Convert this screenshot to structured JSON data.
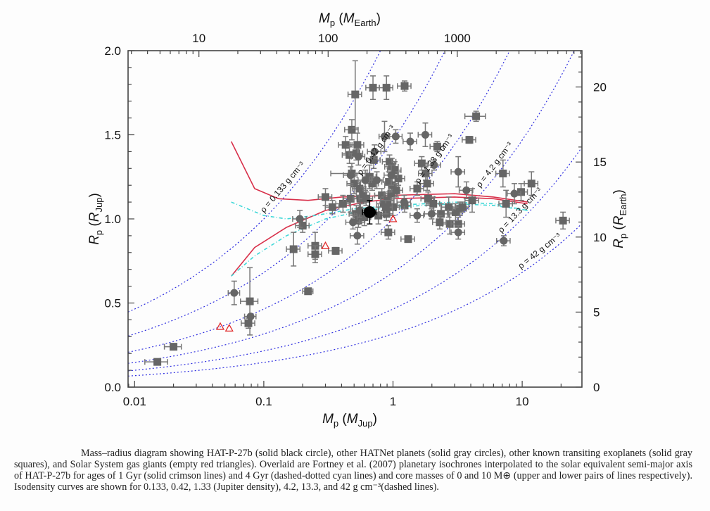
{
  "chart_data": {
    "type": "scatter",
    "title": "",
    "xlabel": "M_p (M_Jup)",
    "xlabel_main": "M",
    "xlabel_sub": "p",
    "xlabel_unit_main": "M",
    "xlabel_unit_sub": "Jup",
    "x2label_main": "M",
    "x2label_sub": "p",
    "x2label_unit_main": "M",
    "x2label_unit_sub": "Earth",
    "ylabel_main": "R",
    "ylabel_sub": "p",
    "ylabel_unit_main": "R",
    "ylabel_unit_sub": "Jup",
    "y2label_main": "R",
    "y2label_sub": "p",
    "y2label_unit_main": "R",
    "y2label_unit_sub": "Earth",
    "xscale": "log",
    "xlim": [
      0.0089,
      29
    ],
    "ylim": [
      0.0,
      2.0
    ],
    "x_ticks": [
      {
        "v": 0.01,
        "label": "0.01"
      },
      {
        "v": 0.1,
        "label": "0.1"
      },
      {
        "v": 1,
        "label": "1"
      },
      {
        "v": 10,
        "label": "10"
      }
    ],
    "y_ticks": [
      {
        "v": 0.0,
        "label": "0.0"
      },
      {
        "v": 0.5,
        "label": "0.5"
      },
      {
        "v": 1.0,
        "label": "1.0"
      },
      {
        "v": 1.5,
        "label": "1.5"
      },
      {
        "v": 2.0,
        "label": "2.0"
      }
    ],
    "x2_ticks_earth": [
      {
        "v": 10,
        "label": "10"
      },
      {
        "v": 100,
        "label": "100"
      },
      {
        "v": 1000,
        "label": "1000"
      }
    ],
    "y2_ticks_earth": [
      {
        "v": 0,
        "label": "0"
      },
      {
        "v": 5,
        "label": "5"
      },
      {
        "v": 10,
        "label": "10"
      },
      {
        "v": 15,
        "label": "15"
      },
      {
        "v": 20,
        "label": "20"
      }
    ],
    "earth_per_jup_mass": 317.8,
    "earth_per_jup_radius": 11.21,
    "grid": false,
    "series": [
      {
        "name": "HAT-P-27b",
        "marker": "big-black-circle",
        "color": "#000000",
        "points": [
          {
            "m": 0.66,
            "r": 1.04,
            "dr": 0.07
          }
        ]
      },
      {
        "name": "Other HATNet planets",
        "marker": "gray-circle",
        "color": "#666666",
        "points": [
          {
            "m": 0.059,
            "r": 0.56,
            "dr": 0.07,
            "dm": 0.006
          },
          {
            "m": 0.079,
            "r": 0.42,
            "dr": 0.0,
            "dm": 0.008
          },
          {
            "m": 0.19,
            "r": 1.0,
            "dr": 0.05
          },
          {
            "m": 0.53,
            "r": 0.9,
            "dr": 0.05
          },
          {
            "m": 0.49,
            "r": 0.98,
            "dr": 0.04
          },
          {
            "m": 0.55,
            "r": 1.05,
            "dr": 0.04
          },
          {
            "m": 0.61,
            "r": 1.23,
            "dr": 0.06
          },
          {
            "m": 0.47,
            "r": 1.26,
            "dr": 0.05
          },
          {
            "m": 0.75,
            "r": 1.23,
            "dr": 0.05
          },
          {
            "m": 0.54,
            "r": 1.37,
            "dr": 0.05
          },
          {
            "m": 0.72,
            "r": 1.4,
            "dr": 0.04
          },
          {
            "m": 0.86,
            "r": 1.49,
            "dr": 0.09,
            "dm": 0.08
          },
          {
            "m": 0.97,
            "r": 1.26,
            "dr": 0.06
          },
          {
            "m": 1.05,
            "r": 1.49,
            "dr": 0.04
          },
          {
            "m": 1.36,
            "r": 1.46,
            "dr": 0.05
          },
          {
            "m": 1.78,
            "r": 1.5,
            "dr": 0.07
          },
          {
            "m": 2.08,
            "r": 1.32,
            "dr": 0.03
          },
          {
            "m": 1.22,
            "r": 1.1,
            "dr": 0.04
          },
          {
            "m": 1.54,
            "r": 1.02,
            "dr": 0.04
          },
          {
            "m": 1.99,
            "r": 1.03,
            "dr": 0.03
          },
          {
            "m": 3.2,
            "r": 1.28,
            "dr": 0.09
          },
          {
            "m": 3.2,
            "r": 0.92,
            "dr": 0.04
          },
          {
            "m": 7.2,
            "r": 0.87,
            "dr": 0.03
          },
          {
            "m": 8.7,
            "r": 1.15,
            "dr": 0.06
          },
          {
            "m": 3.7,
            "r": 1.17,
            "dr": 0.05
          }
        ]
      },
      {
        "name": "Other transiting exoplanets",
        "marker": "gray-square",
        "color": "#666666",
        "points": [
          {
            "m": 0.015,
            "r": 0.15,
            "dr": 0.0,
            "dm": 0.003
          },
          {
            "m": 0.02,
            "r": 0.24,
            "dr": 0.0,
            "dm": 0.003
          },
          {
            "m": 0.078,
            "r": 0.51,
            "dr": 0.2,
            "dm": 0.012
          },
          {
            "m": 0.076,
            "r": 0.38,
            "dr": 0.03
          },
          {
            "m": 0.17,
            "r": 0.82,
            "dr": 0.1
          },
          {
            "m": 0.2,
            "r": 0.96,
            "dr": 0.04
          },
          {
            "m": 0.22,
            "r": 0.57,
            "dr": 0.01,
            "dm": 0.02
          },
          {
            "m": 0.25,
            "r": 0.84,
            "dr": 0.08
          },
          {
            "m": 0.25,
            "r": 0.79,
            "dr": 0.05
          },
          {
            "m": 0.3,
            "r": 1.13,
            "dr": 0.05
          },
          {
            "m": 0.34,
            "r": 1.07,
            "dr": 0.04
          },
          {
            "m": 0.36,
            "r": 0.81,
            "dr": 0.02
          },
          {
            "m": 0.41,
            "r": 1.09,
            "dr": 0.05
          },
          {
            "m": 0.43,
            "r": 1.44,
            "dr": 0.05
          },
          {
            "m": 0.46,
            "r": 1.38,
            "dr": 0.05
          },
          {
            "m": 0.48,
            "r": 1.27,
            "dr": 0.06,
            "dm": 0.15
          },
          {
            "m": 0.48,
            "r": 1.53,
            "dr": 0.06
          },
          {
            "m": 0.51,
            "r": 1.74,
            "dr": 0.2
          },
          {
            "m": 0.52,
            "r": 1.39,
            "dr": 0.04
          },
          {
            "m": 0.53,
            "r": 1.44,
            "dr": 0.07
          },
          {
            "m": 0.5,
            "r": 1.21,
            "dr": 0.06
          },
          {
            "m": 0.47,
            "r": 1.12,
            "dr": 0.08
          },
          {
            "m": 0.56,
            "r": 1.12,
            "dr": 0.05
          },
          {
            "m": 0.55,
            "r": 1.18,
            "dr": 0.04
          },
          {
            "m": 0.59,
            "r": 1.14,
            "dr": 0.05
          },
          {
            "m": 0.62,
            "r": 1.12,
            "dr": 0.04
          },
          {
            "m": 0.66,
            "r": 1.25,
            "dr": 0.07
          },
          {
            "m": 0.69,
            "r": 1.21,
            "dr": 0.04
          },
          {
            "m": 0.52,
            "r": 1.03,
            "dr": 0.05
          },
          {
            "m": 0.54,
            "r": 0.99,
            "dr": 0.04
          },
          {
            "m": 0.57,
            "r": 1.02,
            "dr": 0.04
          },
          {
            "m": 0.6,
            "r": 1.01,
            "dr": 0.05
          },
          {
            "m": 0.7,
            "r": 1.78,
            "dr": 0.07
          },
          {
            "m": 0.71,
            "r": 1.35,
            "dr": 0.05
          },
          {
            "m": 0.77,
            "r": 1.02,
            "dr": 0.05
          },
          {
            "m": 0.82,
            "r": 1.14,
            "dr": 0.04
          },
          {
            "m": 0.85,
            "r": 1.09,
            "dr": 0.04
          },
          {
            "m": 0.89,
            "r": 1.78,
            "dr": 0.07
          },
          {
            "m": 0.89,
            "r": 1.03,
            "dr": 0.04
          },
          {
            "m": 0.91,
            "r": 1.11,
            "dr": 0.04
          },
          {
            "m": 0.93,
            "r": 1.22,
            "dr": 0.06
          },
          {
            "m": 0.94,
            "r": 1.34,
            "dr": 0.04
          },
          {
            "m": 0.97,
            "r": 1.15,
            "dr": 0.04
          },
          {
            "m": 0.98,
            "r": 1.31,
            "dr": 0.05
          },
          {
            "m": 0.98,
            "r": 1.2,
            "dr": 0.04
          },
          {
            "m": 1.0,
            "r": 1.07,
            "dr": 0.05
          },
          {
            "m": 1.03,
            "r": 1.29,
            "dr": 0.05
          },
          {
            "m": 1.06,
            "r": 1.17,
            "dr": 0.04
          },
          {
            "m": 1.1,
            "r": 1.24,
            "dr": 0.04
          },
          {
            "m": 0.88,
            "r": 1.07,
            "dr": 0.04
          },
          {
            "m": 0.92,
            "r": 0.92,
            "dr": 0.04
          },
          {
            "m": 1.23,
            "r": 1.79,
            "dr": 0.03
          },
          {
            "m": 1.23,
            "r": 1.08,
            "dr": 0.04
          },
          {
            "m": 1.31,
            "r": 0.88,
            "dr": 0.0
          },
          {
            "m": 1.54,
            "r": 1.18,
            "dr": 0.04
          },
          {
            "m": 1.67,
            "r": 1.33,
            "dr": 0.04
          },
          {
            "m": 1.79,
            "r": 1.27,
            "dr": 0.04
          },
          {
            "m": 1.84,
            "r": 1.21,
            "dr": 0.04
          },
          {
            "m": 1.87,
            "r": 1.12,
            "dr": 0.04
          },
          {
            "m": 2.05,
            "r": 1.09,
            "dr": 0.04
          },
          {
            "m": 2.2,
            "r": 1.43,
            "dr": 0.03
          },
          {
            "m": 2.7,
            "r": 1.07,
            "dr": 0.06
          },
          {
            "m": 2.75,
            "r": 0.97,
            "dr": 0.06
          },
          {
            "m": 3.2,
            "r": 0.97,
            "dr": 0.04
          },
          {
            "m": 3.05,
            "r": 1.04,
            "dr": 0.05
          },
          {
            "m": 3.9,
            "r": 1.47,
            "dr": 0.02
          },
          {
            "m": 4.4,
            "r": 1.61,
            "dr": 0.03,
            "dm": 0.8
          },
          {
            "m": 2.35,
            "r": 1.03,
            "dr": 0.06
          },
          {
            "m": 2.3,
            "r": 0.98,
            "dr": 0.04
          },
          {
            "m": 3.3,
            "r": 1.06,
            "dr": 0.04
          },
          {
            "m": 4.1,
            "r": 1.11,
            "dr": 0.07
          },
          {
            "m": 3.45,
            "r": 1.07,
            "dr": 0.03
          },
          {
            "m": 7.1,
            "r": 1.27,
            "dr": 0.08
          },
          {
            "m": 7.5,
            "r": 1.09,
            "dr": 0.08
          },
          {
            "m": 9.8,
            "r": 1.16,
            "dr": 0.05
          },
          {
            "m": 11.8,
            "r": 1.21,
            "dr": 0.07
          },
          {
            "m": 20.7,
            "r": 0.99,
            "dr": 0.05
          }
        ]
      },
      {
        "name": "Solar System gas giants",
        "marker": "red-open-triangle",
        "color": "#e02828",
        "points": [
          {
            "m": 0.046,
            "r": 0.36
          },
          {
            "m": 0.054,
            "r": 0.35
          },
          {
            "m": 0.3,
            "r": 0.84
          },
          {
            "m": 1.0,
            "r": 1.0
          }
        ]
      }
    ],
    "isochrones": [
      {
        "name": "1 Gyr, core 0 M_Earth",
        "style": "solid",
        "color": "#d8304a",
        "points": [
          [
            0.056,
            1.46
          ],
          [
            0.085,
            1.18
          ],
          [
            0.13,
            1.12
          ],
          [
            0.22,
            1.11
          ],
          [
            0.4,
            1.13
          ],
          [
            1.0,
            1.14
          ],
          [
            3.0,
            1.15
          ],
          [
            6.0,
            1.13
          ],
          [
            11.0,
            1.1
          ]
        ]
      },
      {
        "name": "1 Gyr, core 10 M_Earth",
        "style": "solid",
        "color": "#d8304a",
        "points": [
          [
            0.056,
            0.66
          ],
          [
            0.085,
            0.83
          ],
          [
            0.15,
            0.95
          ],
          [
            0.3,
            1.05
          ],
          [
            0.6,
            1.1
          ],
          [
            1.0,
            1.12
          ],
          [
            3.0,
            1.13
          ],
          [
            6.0,
            1.12
          ],
          [
            11.0,
            1.09
          ]
        ]
      },
      {
        "name": "4 Gyr, core 0 M_Earth",
        "style": "dash-dot",
        "color": "#40d8d8",
        "points": [
          [
            0.056,
            1.1
          ],
          [
            0.1,
            1.02
          ],
          [
            0.15,
            1.0
          ],
          [
            0.25,
            1.02
          ],
          [
            0.5,
            1.06
          ],
          [
            1.0,
            1.08
          ],
          [
            3.0,
            1.1
          ],
          [
            6.0,
            1.09
          ],
          [
            11.0,
            1.05
          ]
        ]
      },
      {
        "name": "4 Gyr, core 10 M_Earth",
        "style": "dash-dot",
        "color": "#40d8d8",
        "points": [
          [
            0.056,
            0.66
          ],
          [
            0.085,
            0.78
          ],
          [
            0.15,
            0.9
          ],
          [
            0.3,
            1.0
          ],
          [
            0.6,
            1.05
          ],
          [
            1.0,
            1.07
          ],
          [
            3.0,
            1.09
          ],
          [
            6.0,
            1.08
          ],
          [
            11.0,
            1.05
          ]
        ]
      }
    ],
    "isodensity": [
      {
        "rho": 0.133,
        "label": "ρ = 0.133 g cm⁻³",
        "label_at_m": 0.16
      },
      {
        "rho": 0.42,
        "label": "ρ = 0.42 g cm⁻³",
        "label_at_m": 0.85
      },
      {
        "rho": 1.33,
        "label": "ρ = 1.33 g cm⁻³",
        "label_at_m": 2.4
      },
      {
        "rho": 4.2,
        "label": "ρ = 4.2 g cm⁻³",
        "label_at_m": 7.0
      },
      {
        "rho": 13.3,
        "label": "ρ = 13.3 g cm⁻³",
        "label_at_m": 11.0
      },
      {
        "rho": 42,
        "label": "ρ = 42 g cm⁻³",
        "label_at_m": 15.5
      }
    ],
    "jupiter_density": 1.33
  },
  "caption": "Mass–radius diagram showing HAT-P-27b (solid black circle), other HATNet planets (solid gray circles), other known transiting exoplanets (solid gray squares), and Solar System gas giants (empty red triangles). Overlaid are Fortney et al. (2007) planetary isochrones interpolated to the solar equivalent semi-major axis of HAT-P-27b for ages of 1 Gyr (solid crimson lines) and 4 Gyr (dashed-dotted cyan lines) and core masses of 0 and 10 M⊕ (upper and lower pairs of lines respectively). Isodensity curves are shown for 0.133, 0.42, 1.33 (Jupiter density), 4.2, 13.3, and 42 g cm⁻³(dashed lines)."
}
